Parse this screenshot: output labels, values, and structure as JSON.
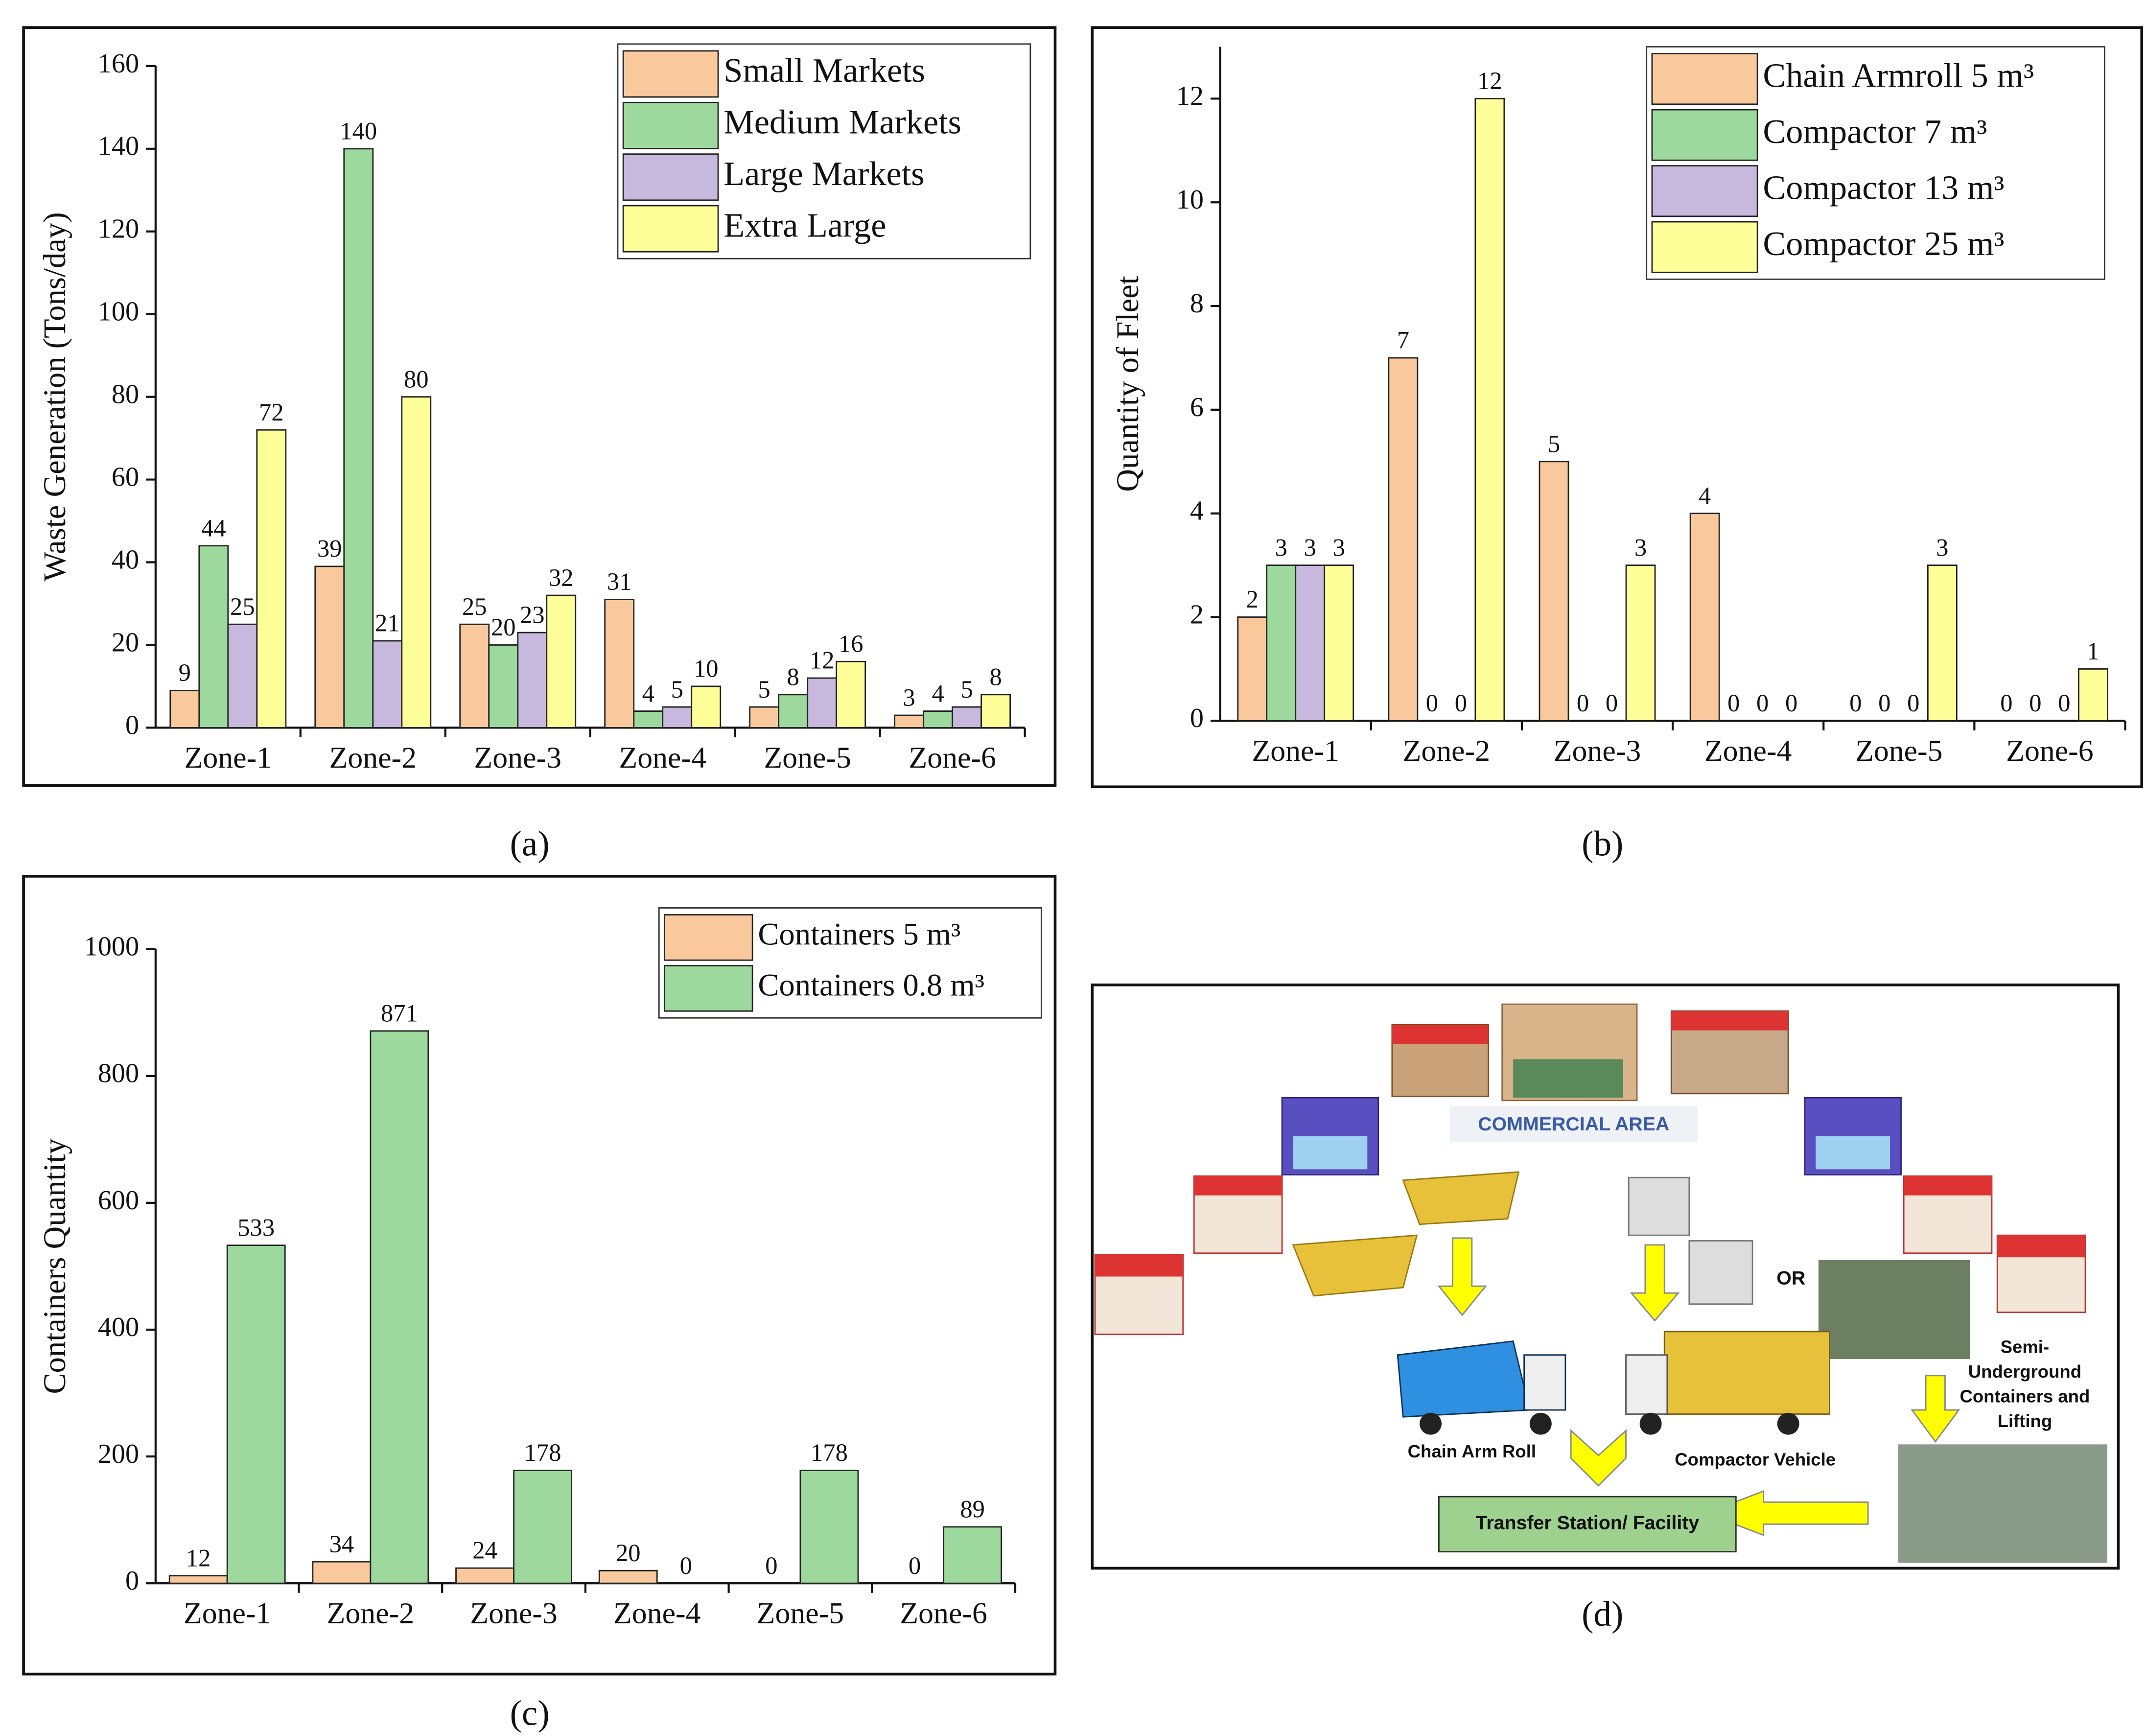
{
  "chart_data": [
    {
      "type": "bar",
      "ylabel": "Waste Generation (Tons/day)",
      "categories": [
        "Zone-1",
        "Zone-2",
        "Zone-3",
        "Zone-4",
        "Zone-5",
        "Zone-6"
      ],
      "series": [
        {
          "name": "Small Markets",
          "color": "#f9c99d",
          "values": [
            9,
            39,
            25,
            31,
            5,
            3
          ]
        },
        {
          "name": "Medium Markets",
          "color": "#9dd99c",
          "values": [
            44,
            140,
            20,
            4,
            8,
            4
          ]
        },
        {
          "name": "Large Markets",
          "color": "#c7b8de",
          "values": [
            25,
            21,
            23,
            5,
            12,
            5
          ]
        },
        {
          "name": "Extra Large",
          "color": "#ffff99",
          "values": [
            72,
            80,
            32,
            10,
            16,
            8
          ]
        }
      ],
      "ylim": [
        0,
        160
      ],
      "yticks": [
        0,
        20,
        40,
        60,
        80,
        100,
        120,
        140,
        160
      ],
      "legend": "upper right"
    },
    {
      "type": "bar",
      "ylabel": "Quantity of Fleet",
      "categories": [
        "Zone-1",
        "Zone-2",
        "Zone-3",
        "Zone-4",
        "Zone-5",
        "Zone-6"
      ],
      "series": [
        {
          "name": "Chain Armroll 5 m³",
          "color": "#f9c99d",
          "values": [
            2,
            7,
            5,
            4,
            0,
            0
          ]
        },
        {
          "name": "Compactor 7 m³",
          "color": "#9dd99c",
          "values": [
            3,
            0,
            0,
            0,
            0,
            0
          ]
        },
        {
          "name": "Compactor 13 m³",
          "color": "#c7b8de",
          "values": [
            3,
            0,
            0,
            0,
            0,
            0
          ]
        },
        {
          "name": "Compactor 25 m³",
          "color": "#ffff99",
          "values": [
            3,
            12,
            3,
            0,
            3,
            1
          ]
        }
      ],
      "ylim": [
        0,
        13
      ],
      "yticks": [
        0,
        2,
        4,
        6,
        8,
        10,
        12
      ],
      "legend": "upper right"
    },
    {
      "type": "bar",
      "ylabel": "Containers Quantity",
      "categories": [
        "Zone-1",
        "Zone-2",
        "Zone-3",
        "Zone-4",
        "Zone-5",
        "Zone-6"
      ],
      "series": [
        {
          "name": "Containers 5 m³",
          "color": "#f9c99d",
          "values": [
            12,
            34,
            24,
            20,
            0,
            0
          ]
        },
        {
          "name": "Containers 0.8 m³",
          "color": "#9dd99c",
          "values": [
            533,
            871,
            178,
            0,
            178,
            89
          ]
        }
      ],
      "ylim": [
        0,
        1000
      ],
      "yticks": [
        0,
        200,
        400,
        600,
        800,
        1000
      ],
      "legend": "upper right"
    }
  ],
  "panel_labels": [
    "(a)",
    "(b)",
    "(c)",
    "(d)"
  ],
  "diagram": {
    "area_label": "COMMERCIAL AREA",
    "option": "OR",
    "vehicles": [
      "Chain Arm Roll",
      "Compactor Vehicle"
    ],
    "underground": [
      "Semi-",
      "Underground",
      "Containers and",
      "Lifting"
    ],
    "destination": "Transfer Station/ Facility"
  }
}
